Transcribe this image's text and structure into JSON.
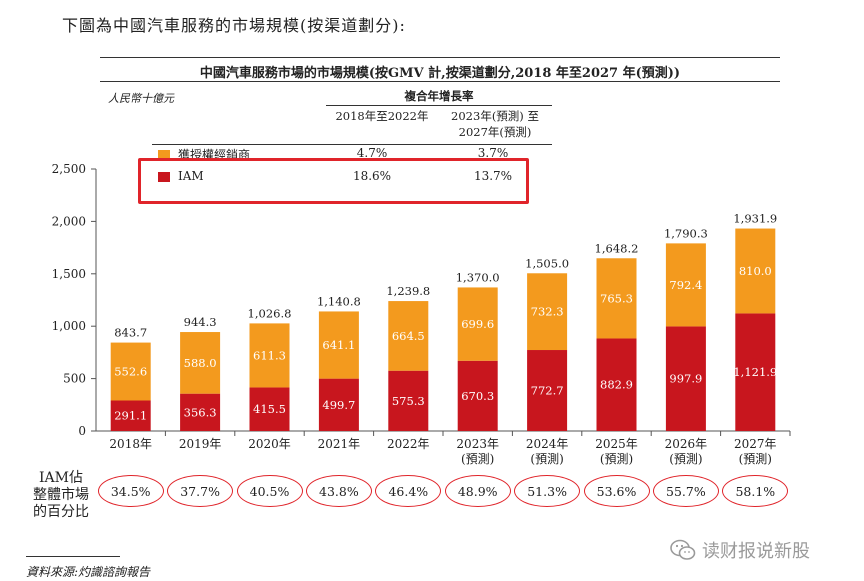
{
  "intro_text": "下圖為中國汽車服務的市場規模(按渠道劃分):",
  "chart_title": "中國汽車服務市場的市場規模(按GMV 計,按渠道劃分,2018 年至2027 年(預測))",
  "unit_label": "人民幣十億元",
  "cagr": {
    "header": "複合年增長率",
    "col1": "2018年至2022年",
    "col2_line1": "2023年(預測) 至",
    "col2_line2": "2027年(預測)",
    "rows": [
      {
        "name": "獲授權經銷商",
        "c1": "4.7%",
        "c2": "3.7%"
      },
      {
        "name": "IAM",
        "c1": "18.6%",
        "c2": "13.7%"
      }
    ]
  },
  "colors": {
    "dealer": "#f39a1e",
    "iam": "#c8161e",
    "highlight": "#e0242a"
  },
  "chart_data": {
    "type": "bar",
    "stacked": true,
    "categories": [
      "2018年",
      "2019年",
      "2020年",
      "2021年",
      "2022年",
      "2023年",
      "2024年",
      "2025年",
      "2026年",
      "2027年"
    ],
    "category_sublabels": [
      "",
      "",
      "",
      "",
      "",
      "(預測)",
      "(預測)",
      "(預測)",
      "(預測)",
      "(預測)"
    ],
    "series": [
      {
        "name": "IAM",
        "values": [
          291.1,
          356.3,
          415.5,
          499.7,
          575.3,
          670.3,
          772.7,
          882.9,
          997.9,
          1121.9
        ],
        "labels": [
          "291.1",
          "356.3",
          "415.5",
          "499.7",
          "575.3",
          "670.3",
          "772.7",
          "882.9",
          "997.9",
          "1,121.9"
        ]
      },
      {
        "name": "獲授權經銷商",
        "values": [
          552.6,
          588.0,
          611.3,
          641.1,
          664.5,
          699.6,
          732.3,
          765.3,
          792.4,
          810.0
        ],
        "labels": [
          "552.6",
          "588.0",
          "611.3",
          "641.1",
          "664.5",
          "699.6",
          "732.3",
          "765.3",
          "792.4",
          "810.0"
        ]
      }
    ],
    "totals": [
      843.7,
      944.3,
      1026.8,
      1140.8,
      1239.8,
      1370.0,
      1505.0,
      1648.2,
      1790.3,
      1931.9
    ],
    "total_labels": [
      "843.7",
      "944.3",
      "1,026.8",
      "1,140.8",
      "1,239.8",
      "1,370.0",
      "1,505.0",
      "1,648.2",
      "1,790.3",
      "1,931.9"
    ],
    "yticks": [
      "0",
      "500",
      "1,000",
      "1,500",
      "2,000",
      "2,500"
    ],
    "ylim": [
      0,
      2500
    ]
  },
  "iam_share": {
    "label_lines": [
      "IAM佔",
      "整體市場",
      "的百分比"
    ],
    "values": [
      "34.5%",
      "37.7%",
      "40.5%",
      "43.8%",
      "46.4%",
      "48.9%",
      "51.3%",
      "53.6%",
      "55.7%",
      "58.1%"
    ]
  },
  "source": "資料來源:灼識諮詢報告",
  "watermark": "读财报说新股"
}
